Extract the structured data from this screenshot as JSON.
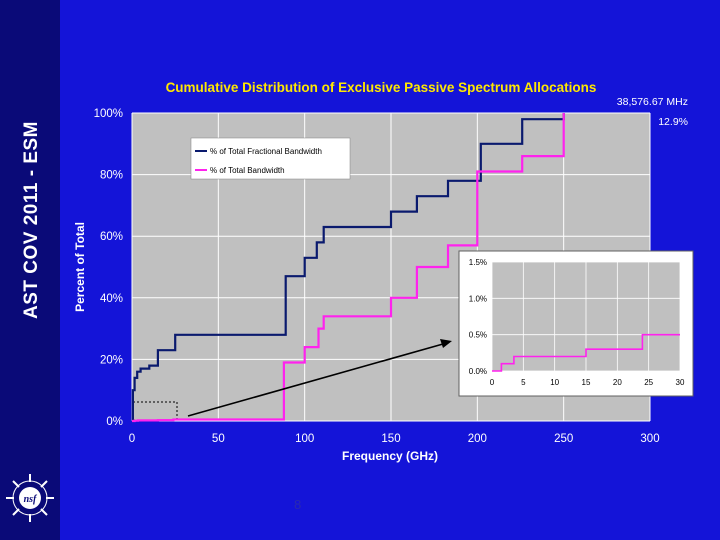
{
  "sidebar": {
    "title": "AST COV 2011 - ESM"
  },
  "page_number": "8",
  "colors": {
    "background": "#1414d8",
    "sidebar": "#0a0a78",
    "plot_area": "#c0c0c0",
    "title": "#ffe800",
    "series_fractional": "#0a1a6e",
    "series_total": "#ff22ee",
    "annotation": "#ffffff"
  },
  "logo": {
    "icon": "nsf-logo-icon"
  },
  "chart_data": {
    "type": "line",
    "title": "Cumulative Distribution of Exclusive Passive Spectrum Allocations",
    "xlabel": "Frequency (GHz)",
    "ylabel": "Percent of Total",
    "xlim": [
      0,
      300
    ],
    "ylim": [
      0,
      100
    ],
    "x_ticks": [
      "0",
      "50",
      "100",
      "150",
      "200",
      "250",
      "300"
    ],
    "y_ticks": [
      "0%",
      "20%",
      "40%",
      "60%",
      "80%",
      "100%"
    ],
    "grid": true,
    "legend_position": "upper-left",
    "step": true,
    "series": [
      {
        "name": "% of Total Fractional Bandwidth",
        "x": [
          0,
          0.5,
          1.5,
          3,
          5,
          10,
          15,
          25,
          31,
          89,
          100,
          107,
          111,
          150,
          165,
          183,
          202,
          226,
          250
        ],
        "y": [
          0,
          10,
          14,
          16,
          17,
          18,
          23,
          28,
          28,
          47,
          53,
          58,
          63,
          68,
          73,
          78,
          90,
          98,
          100
        ]
      },
      {
        "name": "% of Total Bandwidth",
        "x": [
          0,
          1.5,
          3.5,
          15,
          24,
          88,
          100,
          108,
          111,
          150,
          165,
          183,
          200,
          226,
          250
        ],
        "y": [
          0,
          0.1,
          0.2,
          0.3,
          0.5,
          19,
          24,
          30,
          34,
          40,
          50,
          57,
          81,
          86,
          100
        ]
      }
    ],
    "inset": {
      "xlim": [
        0,
        30
      ],
      "ylim": [
        0,
        1.5
      ],
      "x_ticks": [
        "0",
        "5",
        "10",
        "15",
        "20",
        "25",
        "30"
      ],
      "y_ticks": [
        "0.0%",
        "0.5%",
        "1.0%",
        "1.5%"
      ],
      "series": "% of Total Bandwidth"
    },
    "annotations": [
      "38,576.67 MHz",
      "12.9%"
    ]
  }
}
